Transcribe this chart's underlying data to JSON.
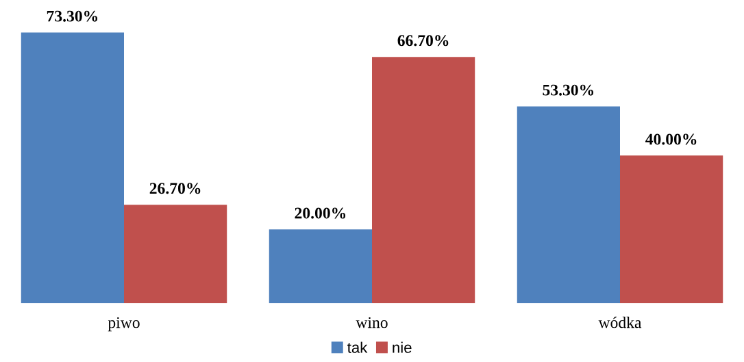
{
  "chart_data": {
    "type": "bar",
    "categories": [
      "piwo",
      "wino",
      "wódka"
    ],
    "series": [
      {
        "name": "tak",
        "color": "#4f81bd",
        "values": [
          73.3,
          20.0,
          53.3
        ],
        "value_labels": [
          "73.30%",
          "20.00%",
          "53.30%"
        ]
      },
      {
        "name": "nie",
        "color": "#c0504d",
        "values": [
          26.7,
          66.7,
          40.0
        ],
        "value_labels": [
          "26.70%",
          "66.70%",
          "40.00%"
        ]
      }
    ],
    "legend": "bottom",
    "grid": false
  }
}
